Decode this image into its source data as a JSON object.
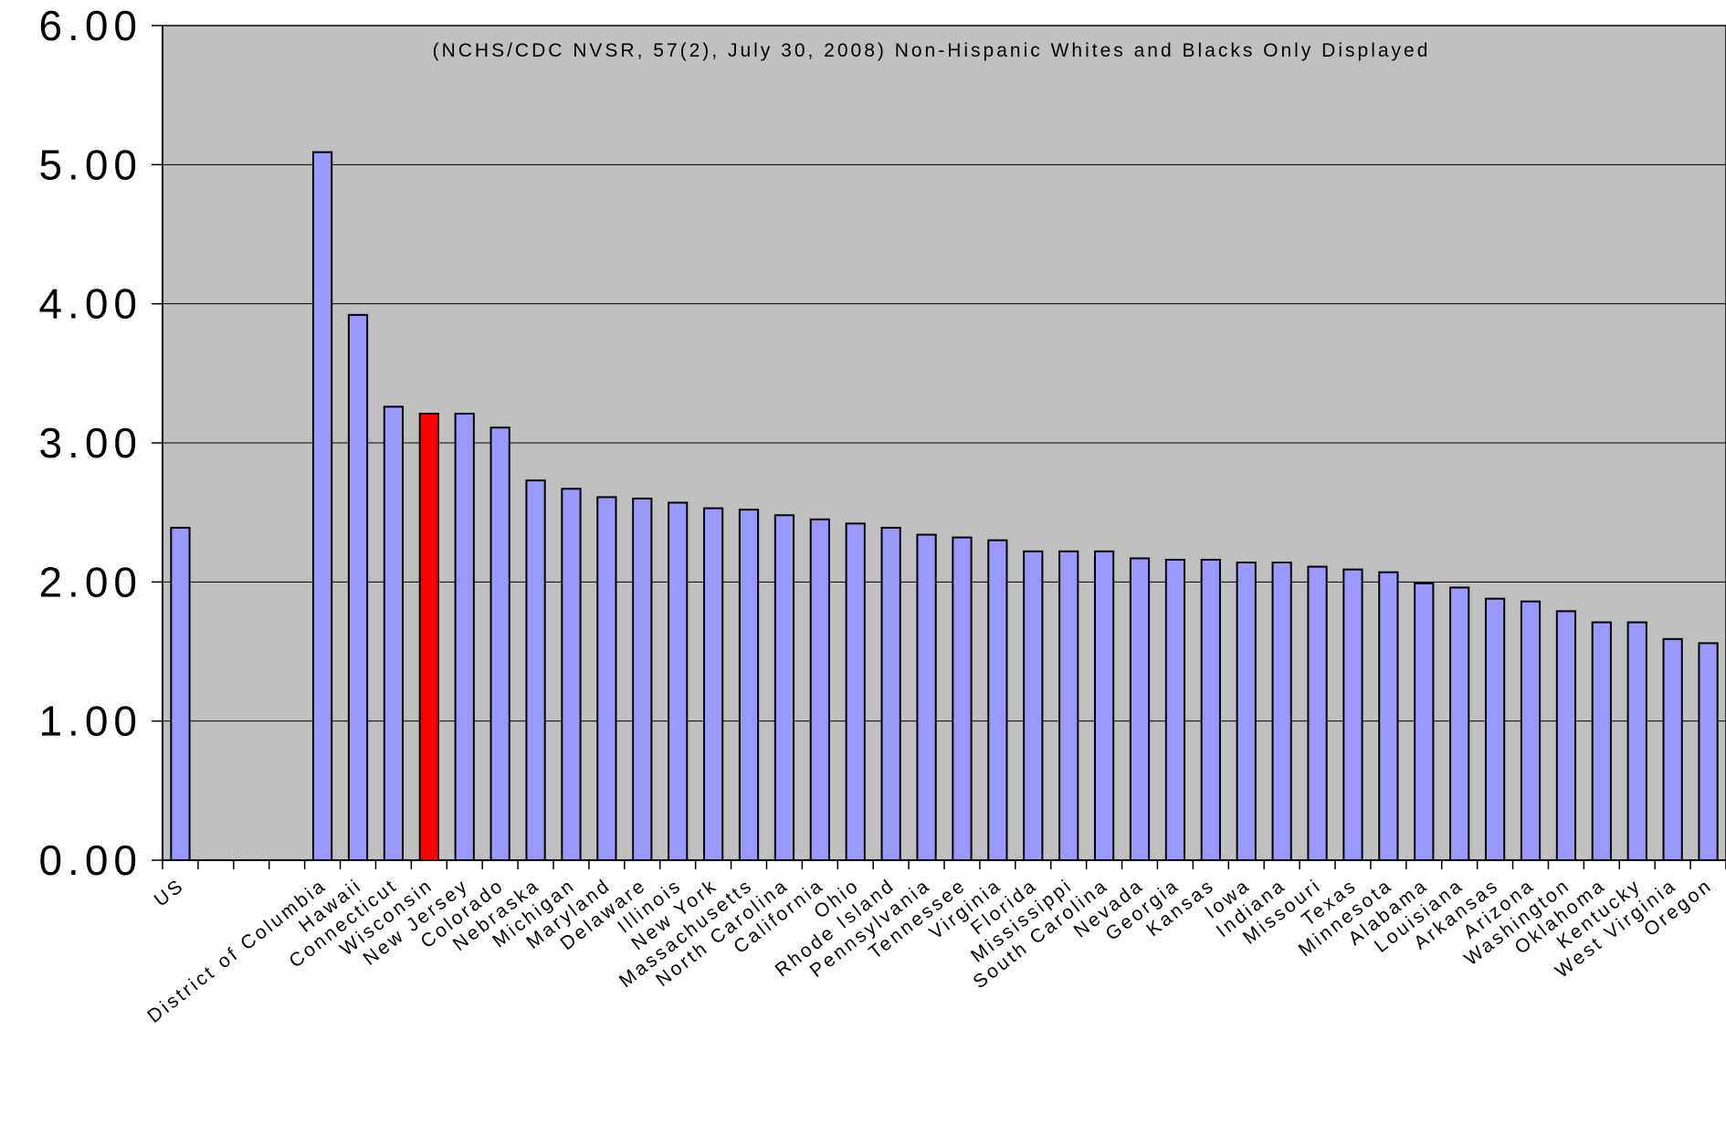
{
  "chart_data": {
    "type": "bar",
    "title": "(NCHS/CDC NVSR, 57(2), July 30, 2008) Non-Hispanic Whites and Blacks Only Displayed",
    "xlabel": "",
    "ylabel": "",
    "ylim": [
      0,
      6
    ],
    "yticks": [
      "0.00",
      "1.00",
      "2.00",
      "3.00",
      "4.00",
      "5.00",
      "6.00"
    ],
    "grid": true,
    "legend": "none",
    "colors": {
      "bar": "#9999ff",
      "highlight": "#ff0000",
      "plot_bg": "#c0c0c0",
      "bar_outline": "#000000"
    },
    "categories": [
      "US",
      "",
      "",
      "",
      "District of Columbia",
      "Hawaii",
      "Connecticut",
      "Wisconsin",
      "New Jersey",
      "Colorado",
      "Nebraska",
      "Michigan",
      "Maryland",
      "Delaware",
      "Illinois",
      "New York",
      "Massachusetts",
      "North Carolina",
      "California",
      "Ohio",
      "Rhode Island",
      "Pennsylvania",
      "Tennessee",
      "Virginia",
      "Florida",
      "Mississippi",
      "South Carolina",
      "Nevada",
      "Georgia",
      "Kansas",
      "Iowa",
      "Indiana",
      "Missouri",
      "Texas",
      "Minnesota",
      "Alabama",
      "Louisiana",
      "Arkansas",
      "Arizona",
      "Washington",
      "Oklahoma",
      "Kentucky",
      "West Virginia",
      "Oregon"
    ],
    "values": [
      2.39,
      null,
      null,
      null,
      5.09,
      3.92,
      3.26,
      3.21,
      3.21,
      3.11,
      2.73,
      2.67,
      2.61,
      2.6,
      2.57,
      2.53,
      2.52,
      2.48,
      2.45,
      2.42,
      2.39,
      2.34,
      2.32,
      2.3,
      2.22,
      2.22,
      2.22,
      2.17,
      2.16,
      2.16,
      2.14,
      2.14,
      2.11,
      2.09,
      2.07,
      1.99,
      1.96,
      1.88,
      1.86,
      1.79,
      1.71,
      1.71,
      1.59,
      1.56
    ],
    "highlight_index": 7
  }
}
